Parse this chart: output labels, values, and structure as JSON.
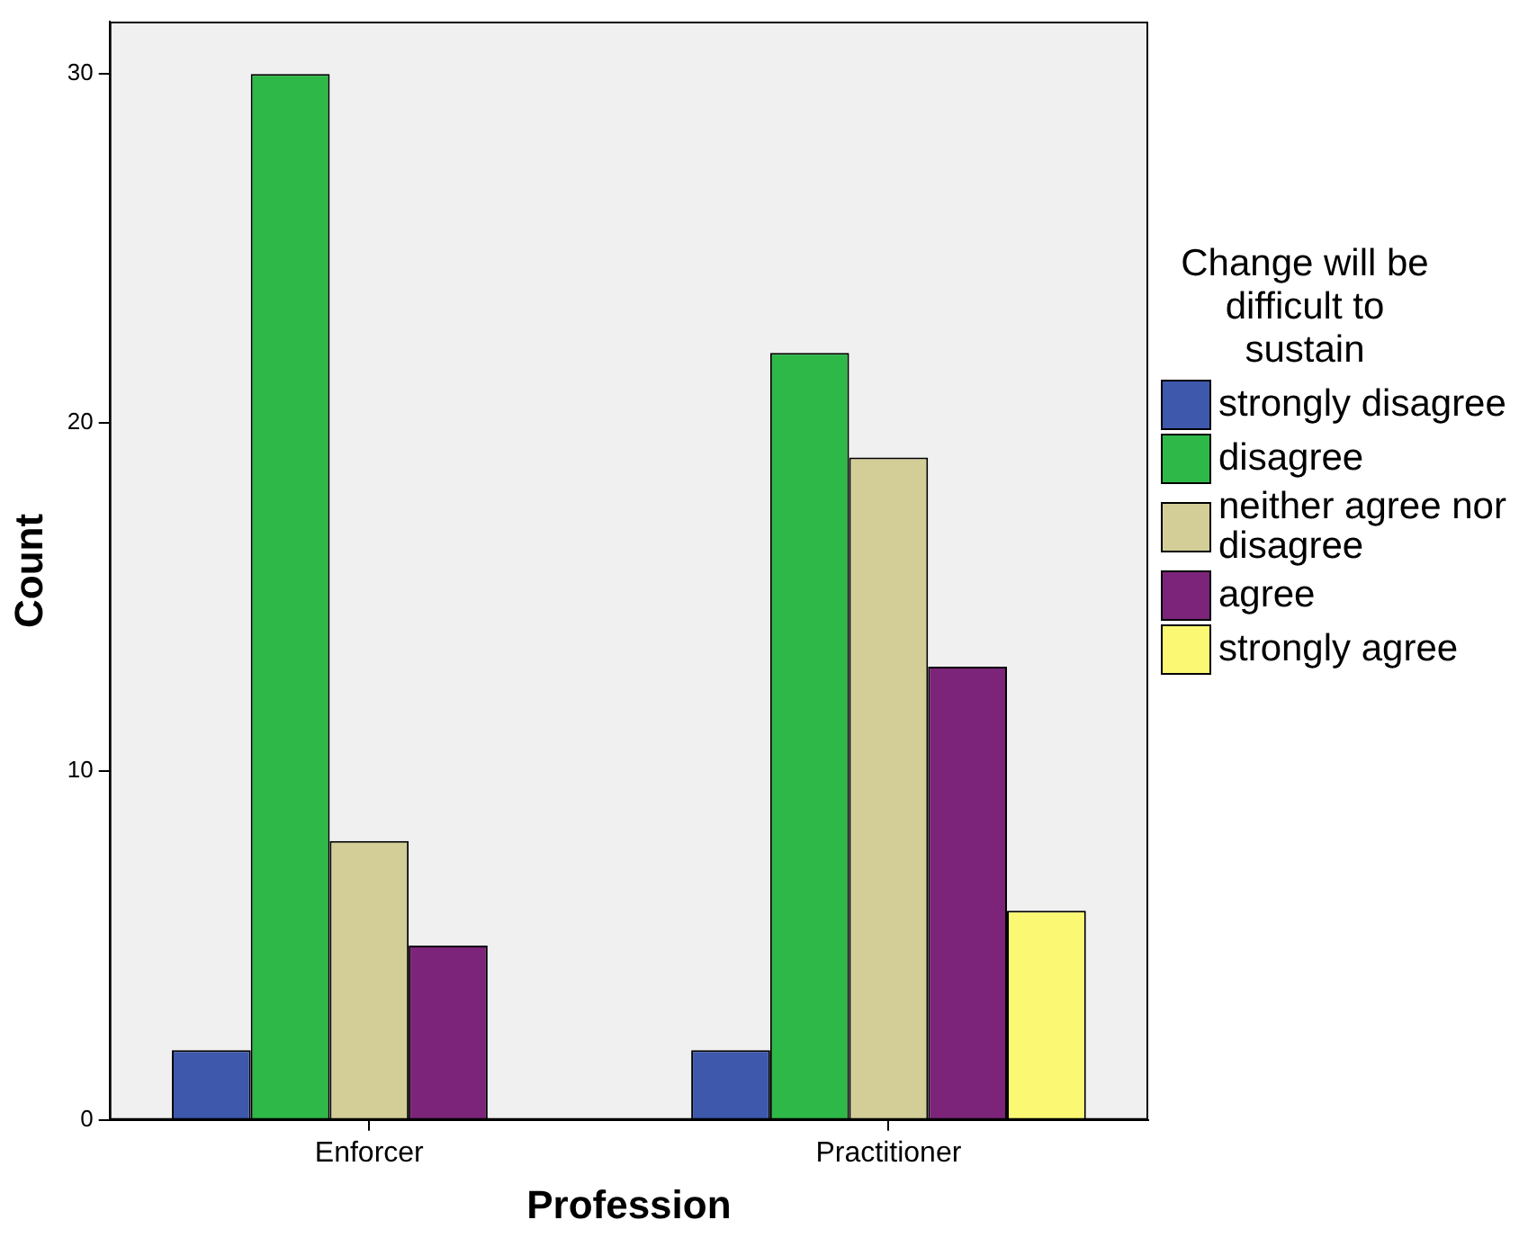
{
  "chart_data": {
    "type": "bar",
    "xlabel": "Profession",
    "ylabel": "Count",
    "legend_title": "Change will be difficult to sustain",
    "legend": "right",
    "grid": false,
    "categories": [
      "Enforcer",
      "Practitioner"
    ],
    "ylim": [
      0,
      31.5
    ],
    "yticks": [
      0,
      10,
      20,
      30
    ],
    "series": [
      {
        "name": "strongly disagree",
        "color": "#3e58ac",
        "values": [
          2,
          2
        ]
      },
      {
        "name": "disagree",
        "color": "#2eb848",
        "values": [
          30,
          22
        ]
      },
      {
        "name": "neither agree nor disagree",
        "color": "#d3ce97",
        "values": [
          8,
          19
        ]
      },
      {
        "name": "agree",
        "color": "#7b2479",
        "values": [
          5,
          13
        ]
      },
      {
        "name": "strongly agree",
        "color": "#fbf873",
        "values": [
          0,
          6
        ]
      }
    ]
  }
}
